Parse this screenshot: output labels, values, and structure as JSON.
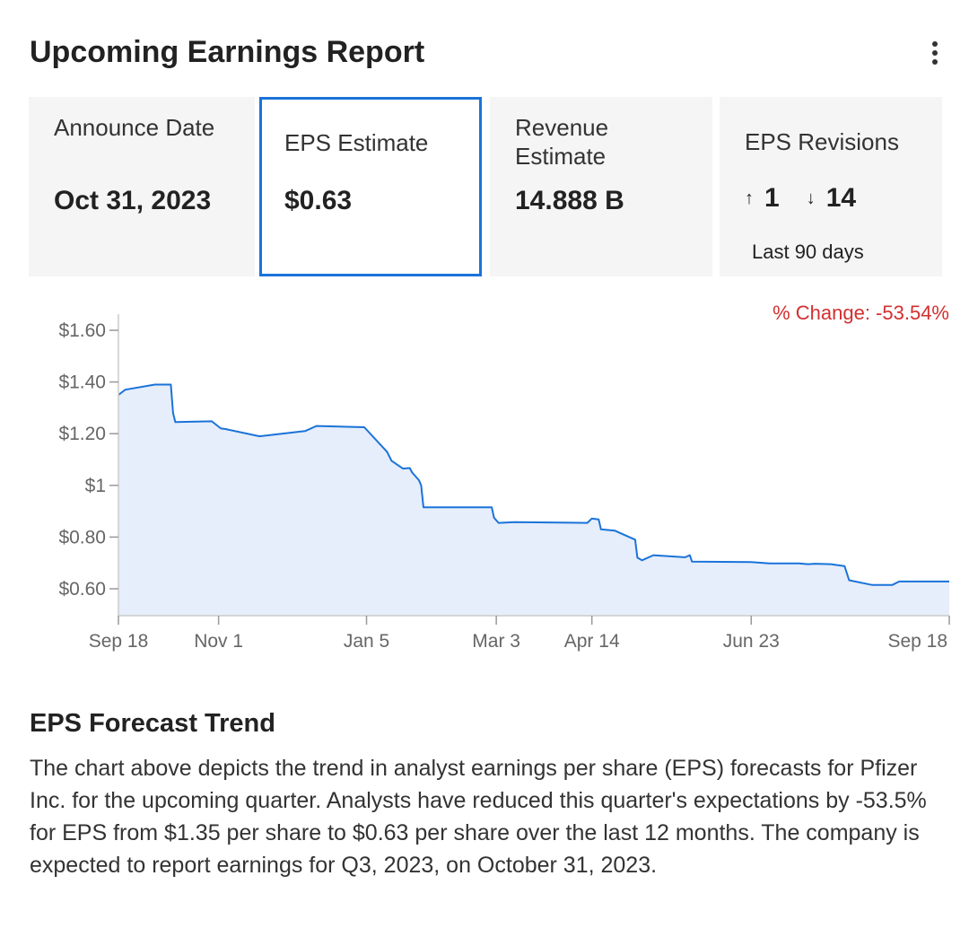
{
  "header": {
    "title": "Upcoming Earnings Report",
    "menu_icon": "kebab-menu-icon"
  },
  "cards": {
    "announce": {
      "label": "Announce Date",
      "value": "Oct 31, 2023"
    },
    "eps": {
      "label": "EPS Estimate",
      "value": "$0.63"
    },
    "revenue": {
      "label": "Revenue Estimate",
      "value": "14.888 B"
    },
    "revisions": {
      "label": "EPS Revisions",
      "up_arrow": "↑",
      "up_count": "1",
      "down_arrow": "↓",
      "down_count": "14",
      "period": "Last 90 days"
    }
  },
  "chart_header": {
    "pct_change": "% Change: -53.54%"
  },
  "chart_data": {
    "type": "area",
    "title": "",
    "xlabel": "",
    "ylabel": "",
    "x_ticks": [
      "Sep 18",
      "Nov 1",
      "Jan 5",
      "Mar 3",
      "Apr 14",
      "Jun 23",
      "Sep 18"
    ],
    "y_ticks": [
      "$1.60",
      "$1.40",
      "$1.20",
      "$1",
      "$0.80",
      "$0.60"
    ],
    "ylim": [
      0.5,
      1.65
    ],
    "xlim": [
      "2022-09-18",
      "2023-09-18"
    ],
    "grid": false,
    "line_color": "#1a73d9",
    "fill_color": "#e6eefb",
    "series": [
      {
        "points": [
          [
            "2022-09-18",
            1.35
          ],
          [
            "2022-09-21",
            1.37
          ],
          [
            "2022-10-04",
            1.39
          ],
          [
            "2022-10-11",
            1.39
          ],
          [
            "2022-10-12",
            1.28
          ],
          [
            "2022-10-13",
            1.245
          ],
          [
            "2022-10-29",
            1.248
          ],
          [
            "2022-11-02",
            1.22
          ],
          [
            "2022-11-04",
            1.218
          ],
          [
            "2022-11-19",
            1.19
          ],
          [
            "2022-12-09",
            1.21
          ],
          [
            "2022-12-14",
            1.23
          ],
          [
            "2023-01-04",
            1.225
          ],
          [
            "2023-01-14",
            1.13
          ],
          [
            "2023-01-16",
            1.095
          ],
          [
            "2023-01-21",
            1.065
          ],
          [
            "2023-01-24",
            1.067
          ],
          [
            "2023-01-25",
            1.05
          ],
          [
            "2023-01-28",
            1.02
          ],
          [
            "2023-01-29",
            1.0
          ],
          [
            "2023-01-30",
            0.915
          ],
          [
            "2023-03-01",
            0.915
          ],
          [
            "2023-03-02",
            0.875
          ],
          [
            "2023-03-04",
            0.855
          ],
          [
            "2023-03-11",
            0.858
          ],
          [
            "2023-04-12",
            0.855
          ],
          [
            "2023-04-14",
            0.872
          ],
          [
            "2023-04-17",
            0.868
          ],
          [
            "2023-04-18",
            0.83
          ],
          [
            "2023-04-24",
            0.825
          ],
          [
            "2023-05-03",
            0.79
          ],
          [
            "2023-05-04",
            0.72
          ],
          [
            "2023-05-06",
            0.71
          ],
          [
            "2023-05-11",
            0.73
          ],
          [
            "2023-05-25",
            0.722
          ],
          [
            "2023-05-27",
            0.73
          ],
          [
            "2023-05-28",
            0.705
          ],
          [
            "2023-06-23",
            0.703
          ],
          [
            "2023-07-01",
            0.698
          ],
          [
            "2023-07-14",
            0.698
          ],
          [
            "2023-07-18",
            0.695
          ],
          [
            "2023-07-21",
            0.697
          ],
          [
            "2023-07-28",
            0.695
          ],
          [
            "2023-08-03",
            0.688
          ],
          [
            "2023-08-05",
            0.633
          ],
          [
            "2023-08-15",
            0.615
          ],
          [
            "2023-08-24",
            0.615
          ],
          [
            "2023-08-27",
            0.628
          ],
          [
            "2023-09-18",
            0.628
          ]
        ]
      }
    ]
  },
  "trend": {
    "title": "EPS Forecast Trend",
    "body": "The chart above depicts the trend in analyst earnings per share (EPS) forecasts for Pfizer Inc. for the upcoming quarter. Analysts have reduced this quarter's expectations by -53.5% for EPS from $1.35 per share to $0.63 per share over the last 12 months. The company is expected to report earnings for Q3, 2023, on October 31, 2023."
  }
}
